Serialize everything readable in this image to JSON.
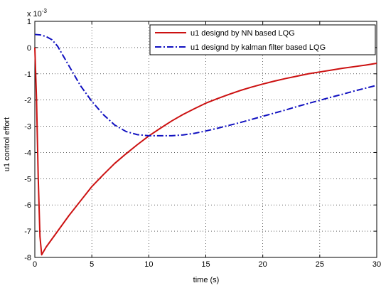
{
  "chart_data": {
    "type": "line",
    "xlabel": "time (s)",
    "ylabel": "u1 control effort",
    "y_scale_label": "x 10",
    "y_scale_exponent": "-3",
    "xlim": [
      0,
      30
    ],
    "ylim": [
      -8,
      1
    ],
    "xticks": [
      0,
      5,
      10,
      15,
      20,
      25,
      30
    ],
    "yticks": [
      1,
      0,
      -1,
      -2,
      -3,
      -4,
      -5,
      -6,
      -7,
      -8
    ],
    "grid": true,
    "legend_position": "top-right",
    "series": [
      {
        "name": "u1 designd by NN based LQG",
        "color": "#cc1111",
        "style": "solid",
        "x": [
          0,
          0.15,
          0.3,
          0.45,
          0.6,
          1,
          2,
          3,
          4,
          5,
          6,
          7,
          8,
          9,
          10,
          11,
          12,
          13,
          14,
          15,
          16,
          17,
          18,
          19,
          20,
          21,
          22,
          23,
          24,
          25,
          26,
          27,
          28,
          29,
          30
        ],
        "values": [
          0,
          -2.0,
          -5.0,
          -7.2,
          -7.9,
          -7.6,
          -7.0,
          -6.4,
          -5.85,
          -5.3,
          -4.85,
          -4.42,
          -4.05,
          -3.7,
          -3.37,
          -3.08,
          -2.8,
          -2.55,
          -2.33,
          -2.12,
          -1.95,
          -1.79,
          -1.64,
          -1.51,
          -1.39,
          -1.28,
          -1.18,
          -1.09,
          -1.0,
          -0.93,
          -0.86,
          -0.79,
          -0.73,
          -0.67,
          -0.6
        ]
      },
      {
        "name": "u1 designd by kalman filter based LQG",
        "color": "#1010c0",
        "style": "dashdot",
        "x": [
          0,
          0.5,
          1,
          1.5,
          2,
          3,
          4,
          5,
          6,
          7,
          8,
          9,
          10,
          11,
          12,
          13,
          14,
          15,
          16,
          17,
          18,
          19,
          20,
          21,
          22,
          23,
          24,
          25,
          26,
          27,
          28,
          29,
          30
        ],
        "values": [
          0.5,
          0.48,
          0.42,
          0.3,
          0.05,
          -0.7,
          -1.45,
          -2.05,
          -2.55,
          -2.95,
          -3.2,
          -3.32,
          -3.36,
          -3.36,
          -3.36,
          -3.33,
          -3.27,
          -3.18,
          -3.08,
          -2.97,
          -2.86,
          -2.74,
          -2.62,
          -2.5,
          -2.38,
          -2.25,
          -2.13,
          -2.01,
          -1.89,
          -1.78,
          -1.66,
          -1.55,
          -1.44
        ]
      }
    ]
  }
}
